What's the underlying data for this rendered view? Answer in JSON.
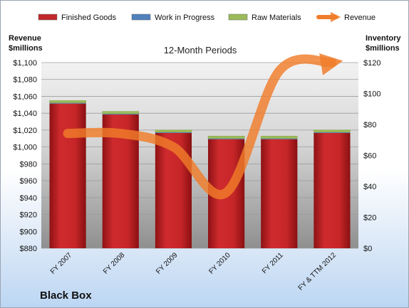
{
  "chart_data": {
    "type": "bar",
    "title": "12-Month Periods",
    "company": "Black Box",
    "left_axis_title": [
      "Revenue",
      "$millions"
    ],
    "right_axis_title": [
      "Inventory",
      "$millions"
    ],
    "categories": [
      "FY 2007",
      "FY 2008",
      "FY 2009",
      "FY 2010",
      "FY 2011",
      "FY & TTM 2012"
    ],
    "stacked": true,
    "series": [
      {
        "name": "Finished Goods",
        "axis": "right",
        "color": "#c0282a",
        "values": [
          93.5,
          86.5,
          74.5,
          70.5,
          70.5,
          74.5
        ]
      },
      {
        "name": "Work in Progress",
        "axis": "right",
        "color": "#4f81bd",
        "values": [
          0.5,
          0.5,
          0.5,
          0.5,
          0.5,
          0.5
        ]
      },
      {
        "name": "Raw Materials",
        "axis": "right",
        "color": "#9bbb59",
        "values": [
          1.5,
          1.5,
          1.5,
          1.5,
          1.5,
          1.5
        ]
      },
      {
        "name": "Revenue",
        "axis": "left",
        "type": "line",
        "color": "#f07d2a",
        "values": [
          1016,
          1016,
          1000,
          946,
          1090,
          1100
        ]
      }
    ],
    "left_axis": {
      "min": 880,
      "max": 1100,
      "step": 20,
      "ticks": [
        "$880",
        "$900",
        "$920",
        "$940",
        "$960",
        "$980",
        "$1,000",
        "$1,020",
        "$1,040",
        "$1,060",
        "$1,080",
        "$1,100"
      ]
    },
    "right_axis": {
      "min": 0,
      "max": 120,
      "step": 20,
      "ticks": [
        "$0",
        "$20",
        "$40",
        "$60",
        "$80",
        "$100",
        "$120"
      ]
    },
    "legend": "top"
  }
}
